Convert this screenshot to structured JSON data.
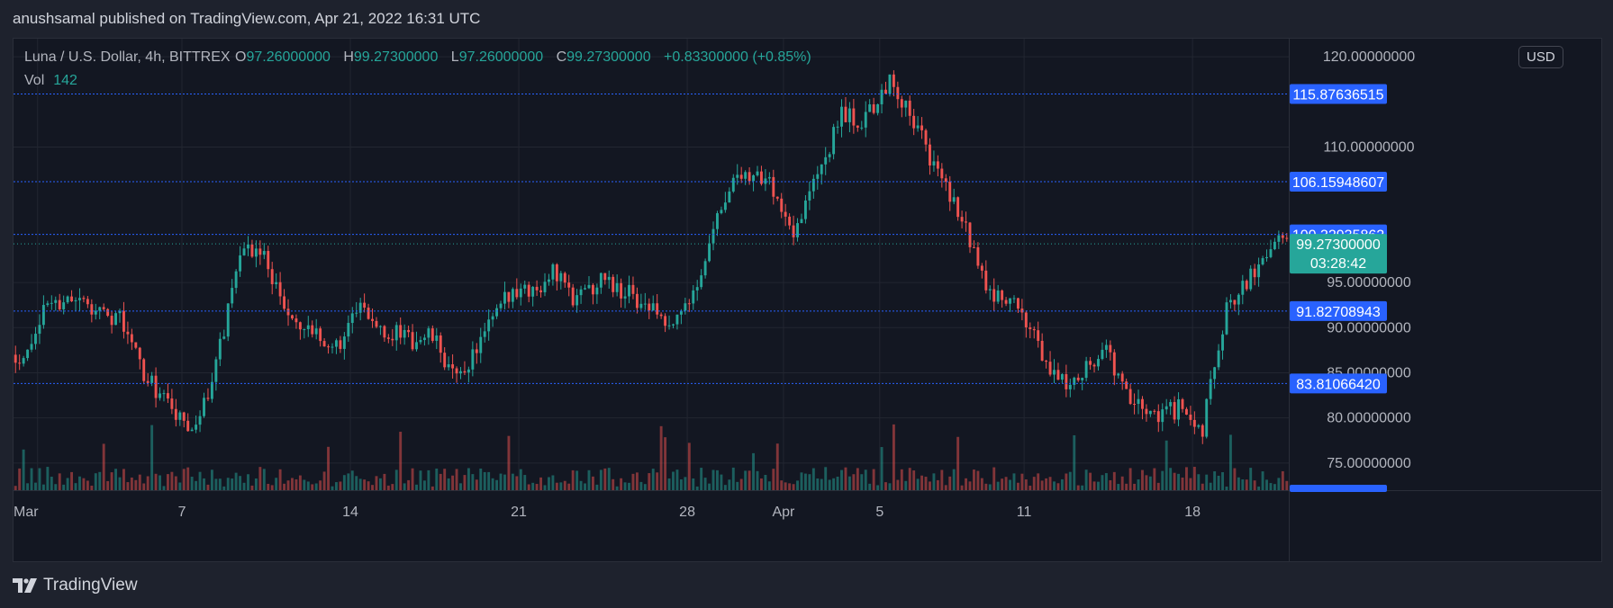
{
  "header": {
    "published_text": "anushsamal published on TradingView.com, Apr 21, 2022 16:31 UTC"
  },
  "legend": {
    "symbol": "Luna / U.S. Dollar, 4h, BITTREX",
    "open_label": "O",
    "open": "97.26000000",
    "high_label": "H",
    "high": "99.27300000",
    "low_label": "L",
    "low": "97.26000000",
    "close_label": "C",
    "close": "99.27300000",
    "change": "+0.83300000 (+0.85%)",
    "vol_label": "Vol",
    "vol_value": "142"
  },
  "price_axis": {
    "currency": "USD"
  },
  "footer": {
    "brand": "TradingView"
  },
  "colors": {
    "background": "#131722",
    "outer": "#1e222d",
    "up": "#26a69a",
    "down": "#ef5350",
    "level_line": "#2962ff",
    "level_badge": "#2962ff",
    "current_badge": "#26a69a",
    "grid": "#222631",
    "text": "#b2b5be"
  },
  "chart_data": {
    "type": "candlestick",
    "timeframe": "4h",
    "x_range": [
      "2022-02-28",
      "2022-04-21"
    ],
    "ylim": [
      72,
      122
    ],
    "y_ticks": [
      "75.00000000",
      "80.00000000",
      "85.00000000",
      "90.00000000",
      "95.00000000",
      "110.00000000",
      "120.00000000"
    ],
    "x_ticks": [
      {
        "label": "Mar",
        "date": "2022-03-01"
      },
      {
        "label": "7",
        "date": "2022-03-07"
      },
      {
        "label": "14",
        "date": "2022-03-14"
      },
      {
        "label": "21",
        "date": "2022-03-21"
      },
      {
        "label": "28",
        "date": "2022-03-28"
      },
      {
        "label": "Apr",
        "date": "2022-04-01"
      },
      {
        "label": "5",
        "date": "2022-04-05"
      },
      {
        "label": "11",
        "date": "2022-04-11"
      },
      {
        "label": "18",
        "date": "2022-04-18"
      }
    ],
    "levels": [
      {
        "label": "115.87636515",
        "value": 115.87636515
      },
      {
        "label": "106.15948607",
        "value": 106.15948607
      },
      {
        "label": "100.32935862",
        "value": 100.32935862
      },
      {
        "label": "91.82708943",
        "value": 91.82708943
      },
      {
        "label": "83.81066420",
        "value": 83.8106642
      }
    ],
    "current_price": {
      "label": "99.27300000",
      "value": 99.273,
      "countdown": "03:28:42"
    },
    "price_path": [
      [
        "2022-02-28",
        87.0
      ],
      [
        "2022-03-01",
        92.5
      ],
      [
        "2022-03-02",
        93.5
      ],
      [
        "2022-03-03",
        92.0
      ],
      [
        "2022-03-04",
        91.0
      ],
      [
        "2022-03-05",
        85.0
      ],
      [
        "2022-03-06",
        81.5
      ],
      [
        "2022-03-07",
        78.0
      ],
      [
        "2022-03-08",
        85.5
      ],
      [
        "2022-03-09",
        99.0
      ],
      [
        "2022-03-10",
        98.0
      ],
      [
        "2022-03-11",
        91.0
      ],
      [
        "2022-03-12",
        89.0
      ],
      [
        "2022-03-13",
        88.0
      ],
      [
        "2022-03-14",
        92.0
      ],
      [
        "2022-03-15",
        90.0
      ],
      [
        "2022-03-16",
        88.5
      ],
      [
        "2022-03-17",
        89.0
      ],
      [
        "2022-03-18",
        84.0
      ],
      [
        "2022-03-19",
        88.5
      ],
      [
        "2022-03-20",
        93.0
      ],
      [
        "2022-03-21",
        94.0
      ],
      [
        "2022-03-22",
        96.0
      ],
      [
        "2022-03-23",
        93.0
      ],
      [
        "2022-03-24",
        95.5
      ],
      [
        "2022-03-25",
        94.0
      ],
      [
        "2022-03-26",
        92.5
      ],
      [
        "2022-03-27",
        90.5
      ],
      [
        "2022-03-28",
        95.0
      ],
      [
        "2022-03-29",
        104.0
      ],
      [
        "2022-03-30",
        107.5
      ],
      [
        "2022-03-31",
        106.0
      ],
      [
        "2022-04-01",
        101.0
      ],
      [
        "2022-04-02",
        107.0
      ],
      [
        "2022-04-03",
        113.5
      ],
      [
        "2022-04-04",
        113.0
      ],
      [
        "2022-04-05",
        117.5
      ],
      [
        "2022-04-06",
        113.0
      ],
      [
        "2022-04-07",
        107.0
      ],
      [
        "2022-04-08",
        102.0
      ],
      [
        "2022-04-09",
        94.0
      ],
      [
        "2022-04-10",
        93.5
      ],
      [
        "2022-04-11",
        89.0
      ],
      [
        "2022-04-12",
        83.5
      ],
      [
        "2022-04-13",
        85.5
      ],
      [
        "2022-04-14",
        87.5
      ],
      [
        "2022-04-15",
        81.5
      ],
      [
        "2022-04-16",
        80.5
      ],
      [
        "2022-04-17",
        81.0
      ],
      [
        "2022-04-18",
        79.0
      ],
      [
        "2022-04-19",
        92.0
      ],
      [
        "2022-04-20",
        95.5
      ],
      [
        "2022-04-21",
        99.273
      ]
    ]
  }
}
